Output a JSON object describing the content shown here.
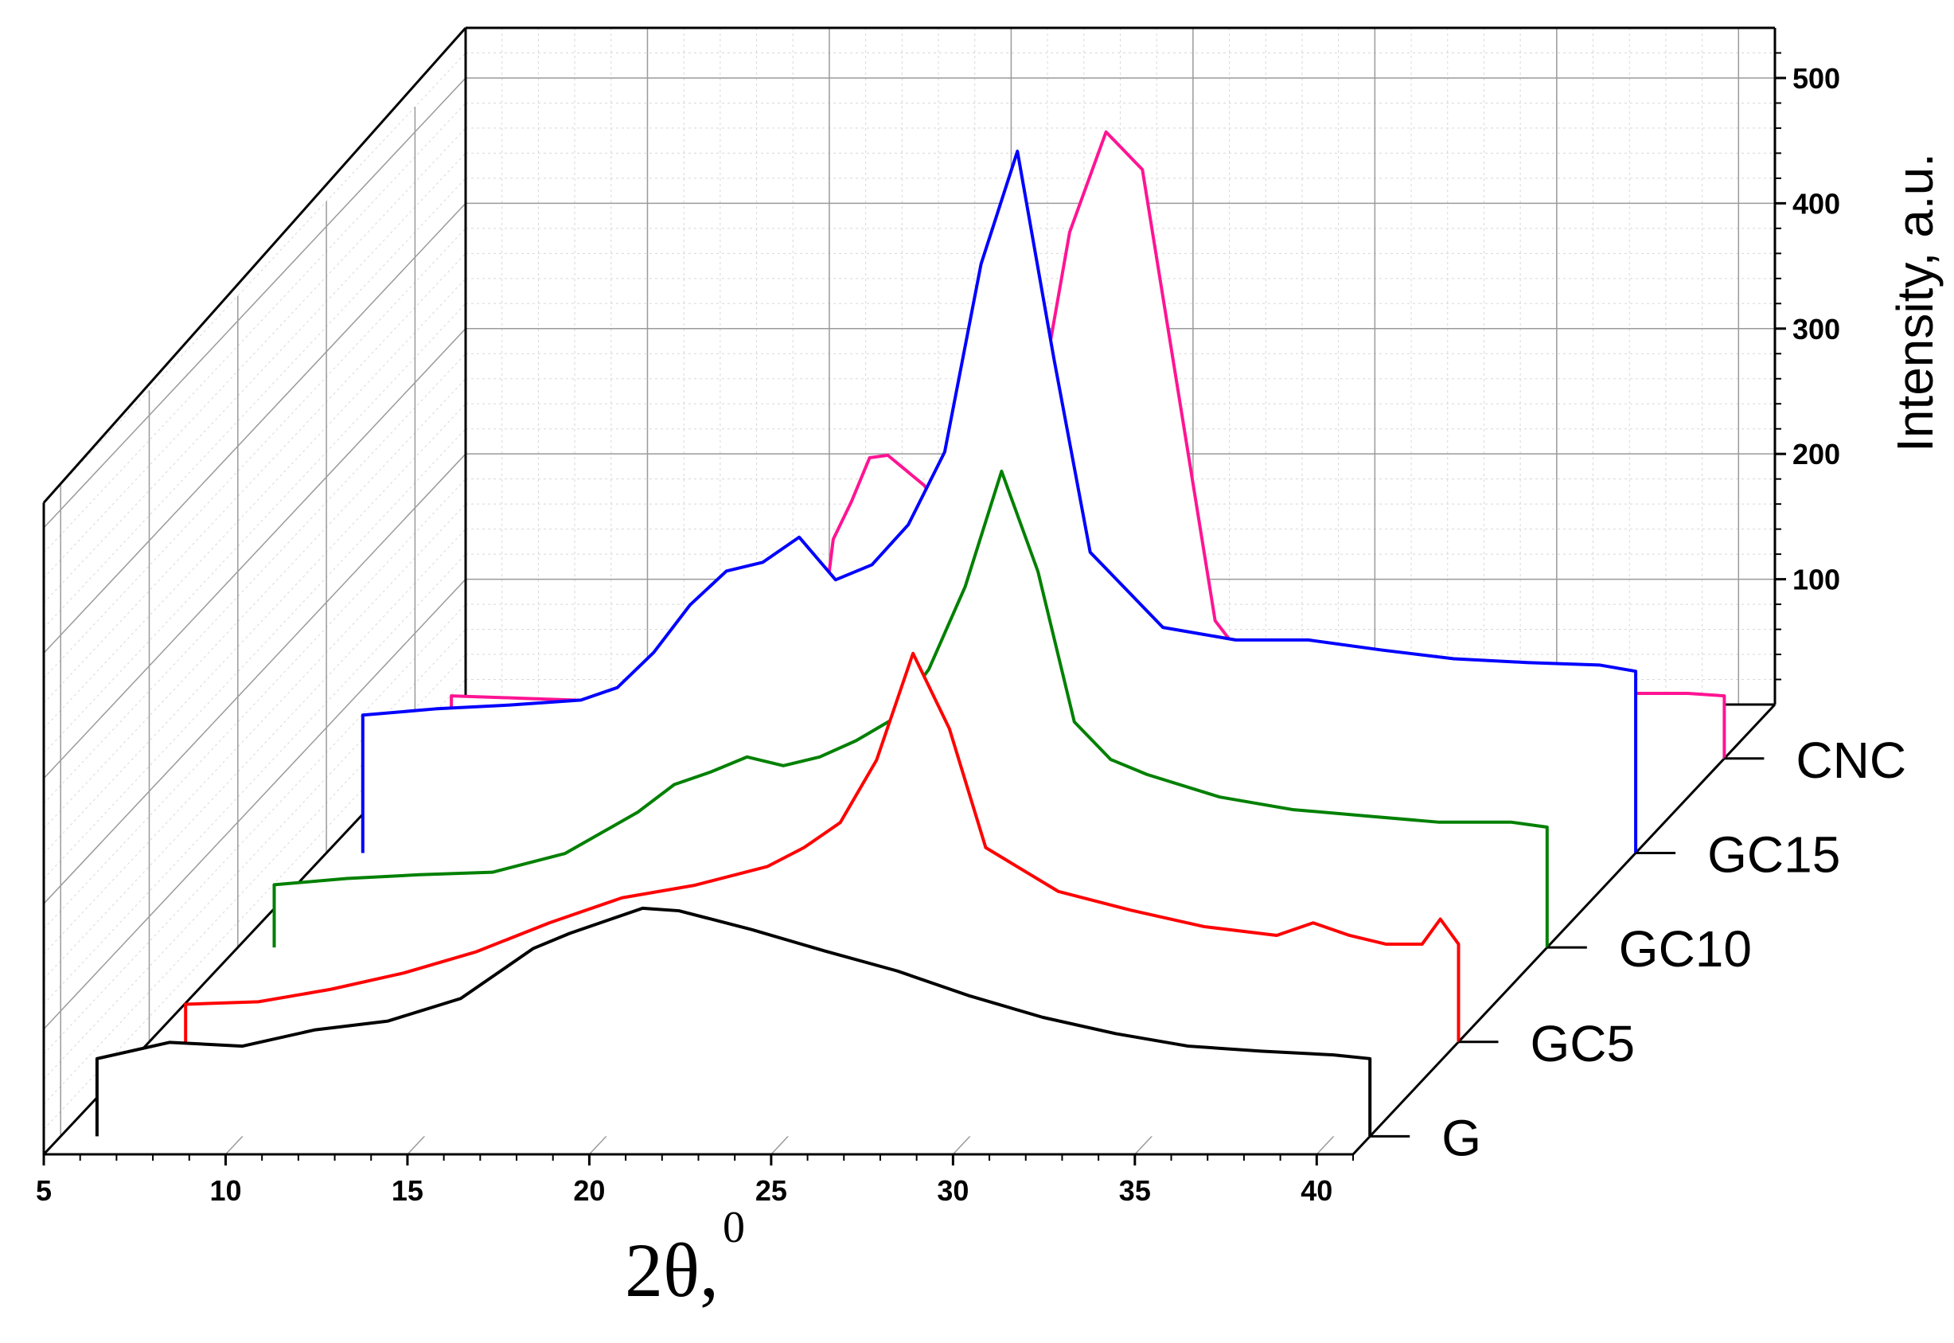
{
  "chart_data": {
    "type": "line",
    "style": "3d-waterfall",
    "title": "",
    "xlabel": "2θ,",
    "xlabel_superscript": "0",
    "ylabel": "Intensity, a.u.",
    "xlim": [
      5,
      41
    ],
    "ylim": [
      0,
      520
    ],
    "x_ticks": [
      "5",
      "10",
      "15",
      "20",
      "25",
      "30",
      "35",
      "40"
    ],
    "y_ticks": [
      "100",
      "200",
      "300",
      "400",
      "500"
    ],
    "grid": true,
    "series_axis_labels": [
      "G",
      "GC5",
      "GC10",
      "GC15",
      "CNC"
    ],
    "series": [
      {
        "name": "G",
        "color": "#000000",
        "x": [
          6,
          8,
          10,
          12,
          14,
          16,
          18,
          19,
          20,
          21,
          22,
          24,
          26,
          28,
          30,
          32,
          34,
          36,
          38,
          40,
          41
        ],
        "y": [
          62,
          75,
          72,
          85,
          92,
          110,
          150,
          162,
          172,
          182,
          180,
          165,
          148,
          132,
          112,
          95,
          82,
          72,
          68,
          65,
          62
        ]
      },
      {
        "name": "GC5",
        "color": "#ff0000",
        "x": [
          6,
          8,
          10,
          12,
          14,
          16,
          18,
          20,
          22,
          23,
          24,
          25,
          26,
          27,
          28,
          30,
          32,
          34,
          36,
          37,
          38,
          39,
          40,
          40.5,
          41
        ],
        "y": [
          30,
          32,
          42,
          55,
          72,
          95,
          115,
          125,
          140,
          155,
          175,
          225,
          310,
          250,
          155,
          120,
          105,
          92,
          85,
          95,
          85,
          78,
          78,
          98,
          78
        ]
      },
      {
        "name": "GC10",
        "color": "#008000",
        "x": [
          6,
          8,
          10,
          12,
          14,
          16,
          17,
          18,
          19,
          20,
          21,
          22,
          23,
          24,
          25,
          26,
          27,
          28,
          29,
          30,
          32,
          34,
          36,
          38,
          40,
          41
        ],
        "y": [
          50,
          55,
          58,
          60,
          75,
          108,
          130,
          140,
          152,
          145,
          152,
          165,
          182,
          222,
          288,
          380,
          300,
          180,
          150,
          138,
          120,
          110,
          105,
          100,
          100,
          96
        ]
      },
      {
        "name": "GC15",
        "color": "#0000ff",
        "x": [
          6,
          8,
          10,
          12,
          13,
          14,
          15,
          16,
          17,
          18,
          19,
          20,
          21,
          22,
          23,
          24,
          25,
          26,
          27,
          28,
          29,
          30,
          32,
          34,
          36,
          38,
          40,
          41
        ],
        "y": [
          110,
          115,
          118,
          122,
          132,
          160,
          198,
          225,
          232,
          252,
          218,
          230,
          262,
          320,
          470,
          560,
          395,
          240,
          210,
          180,
          175,
          170,
          170,
          162,
          155,
          152,
          150,
          145
        ]
      },
      {
        "name": "CNC",
        "color": "#ff1493",
        "x": [
          6,
          8,
          10,
          12,
          14,
          16,
          16.5,
          17,
          17.5,
          18,
          19,
          20,
          21,
          22,
          23,
          24,
          25,
          26,
          27,
          28,
          30,
          32,
          34,
          36,
          38,
          40,
          41
        ],
        "y": [
          50,
          48,
          46,
          45,
          48,
          58,
          175,
          205,
          240,
          242,
          218,
          175,
          125,
          255,
          420,
          500,
          470,
          290,
          110,
          72,
          62,
          56,
          55,
          52,
          52,
          52,
          50
        ]
      }
    ]
  }
}
